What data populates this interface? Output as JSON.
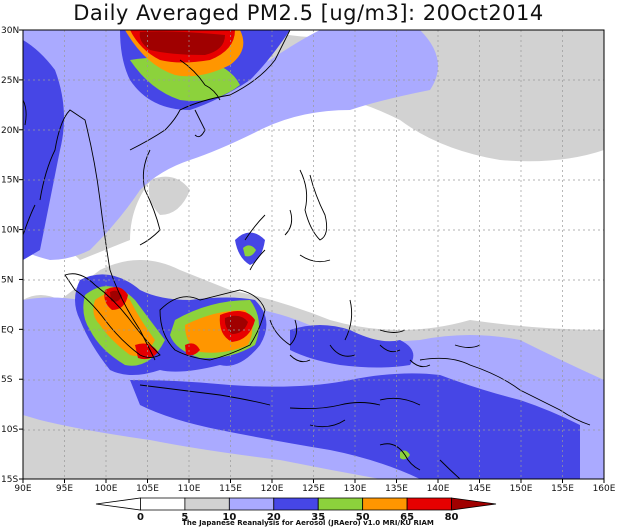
{
  "title": "Daily Averaged PM2.5 [ug/m3]: 20Oct2014",
  "map": {
    "lon_range": [
      90,
      160
    ],
    "lat_range": [
      -15,
      30
    ],
    "lon_ticks": [
      "90E",
      "95E",
      "100E",
      "105E",
      "110E",
      "115E",
      "120E",
      "125E",
      "130E",
      "135E",
      "140E",
      "145E",
      "150E",
      "155E",
      "160E"
    ],
    "lat_ticks": [
      "30N",
      "25N",
      "20N",
      "15N",
      "10N",
      "5N",
      "EQ",
      "5S",
      "10S",
      "15S"
    ],
    "grid": "dotted"
  },
  "colorbar": {
    "levels": [
      "0",
      "5",
      "10",
      "20",
      "35",
      "50",
      "65",
      "80"
    ],
    "colors": [
      "#ffffff",
      "#ffffff",
      "#d2d2d2",
      "#aaaaff",
      "#4646e6",
      "#8cd23c",
      "#ff9600",
      "#e60000",
      "#a00000"
    ]
  },
  "credit": "The Japanese Reanalysis for Aerosol (JRAero) v1.0 MRI/KU RIAM"
}
